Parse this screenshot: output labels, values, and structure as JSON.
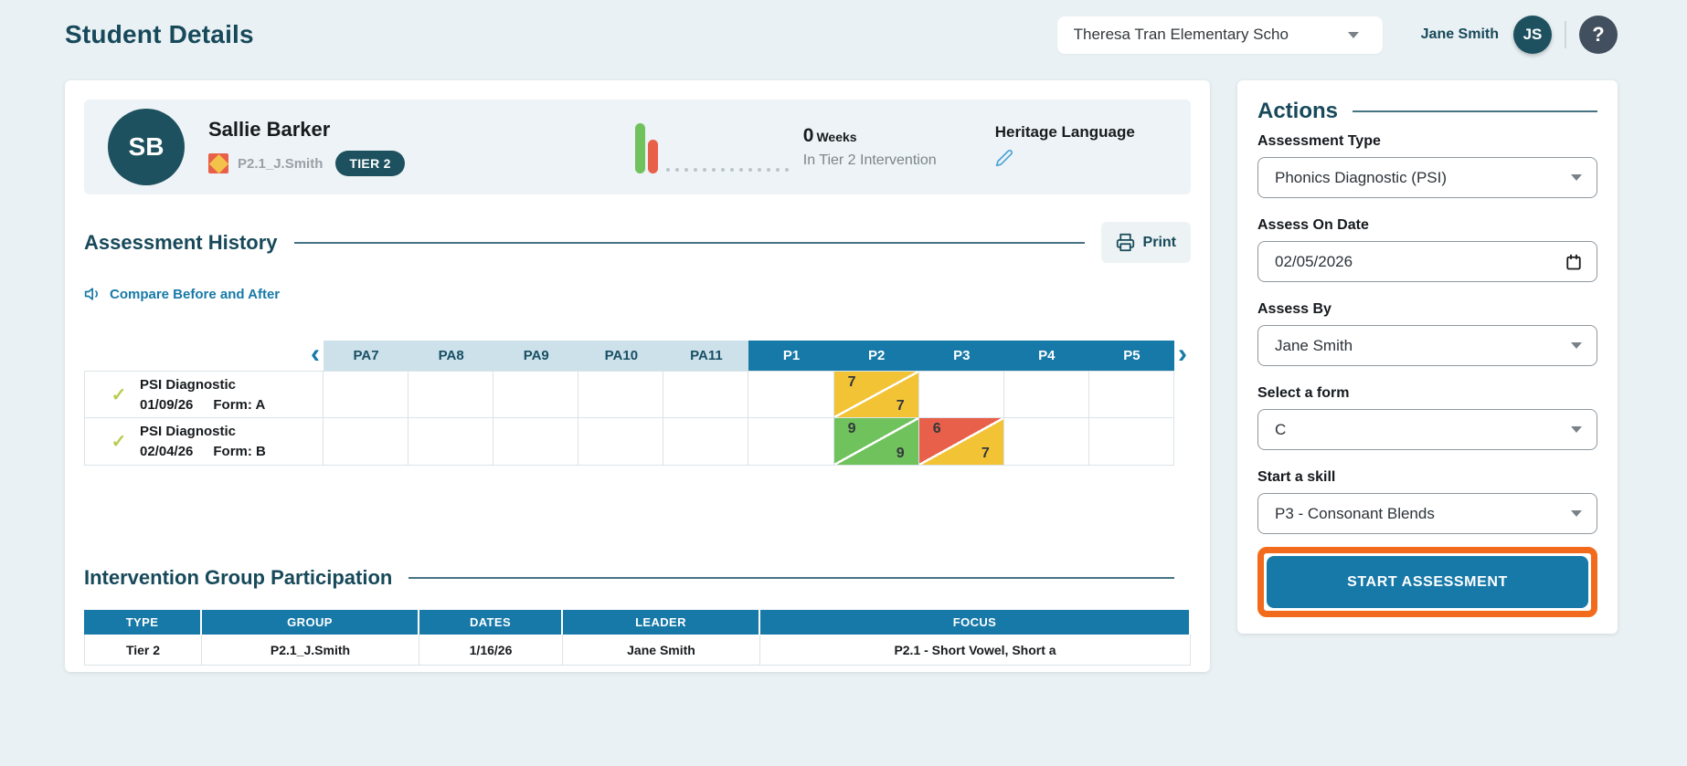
{
  "colors": {
    "accent_blue": "#1779a8",
    "dark_teal": "#17495a",
    "score_yellow": "#f2c335",
    "score_green": "#70c25c",
    "score_red": "#e8604a",
    "highlight_orange": "#f26a1b",
    "tier_badge_bg": "#1d515f"
  },
  "icons": {
    "chevron_left": "‹",
    "chevron_right": "›",
    "check": "✓",
    "help": "?"
  },
  "header": {
    "title": "Student Details",
    "school_selector_value": "Theresa Tran Elementary Scho",
    "user_name": "Jane Smith",
    "user_initials": "JS"
  },
  "student": {
    "initials": "SB",
    "name": "Sallie Barker",
    "group": "P2.1_J.Smith",
    "tier_badge": "TIER 2",
    "weeks_value": "0",
    "weeks_unit": "Weeks",
    "weeks_caption": "In Tier 2 Intervention",
    "language_label": "Heritage Language",
    "weeks_chart": {
      "type": "bar",
      "bars": [
        {
          "name": "bar-green",
          "color": "#70c25c",
          "height": 55
        },
        {
          "name": "bar-red",
          "color": "#e8604a",
          "height": 37
        }
      ],
      "dot_count": 14
    }
  },
  "assessment_history": {
    "title": "Assessment History",
    "print_label": "Print",
    "compare_label": "Compare Before and After",
    "columns": [
      "PA7",
      "PA8",
      "PA9",
      "PA10",
      "PA11",
      "P1",
      "P2",
      "P3",
      "P4",
      "P5"
    ],
    "rows": [
      {
        "name": "PSI Diagnostic",
        "date": "01/09/26",
        "form": "Form: A",
        "cells": {
          "P2": {
            "top": "7",
            "bottom": "7",
            "top_color": "yellow",
            "bottom_color": "yellow"
          }
        }
      },
      {
        "name": "PSI Diagnostic",
        "date": "02/04/26",
        "form": "Form: B",
        "cells": {
          "P2": {
            "top": "9",
            "bottom": "9",
            "top_color": "green",
            "bottom_color": "green"
          },
          "P3": {
            "top": "6",
            "bottom": "7",
            "top_color": "red",
            "bottom_color": "yellow"
          }
        }
      }
    ]
  },
  "intervention": {
    "title": "Intervention Group Participation",
    "columns": [
      "TYPE",
      "GROUP",
      "DATES",
      "LEADER",
      "FOCUS"
    ],
    "rows": [
      {
        "type": "Tier 2",
        "group": "P2.1_J.Smith",
        "dates": "1/16/26",
        "leader": "Jane Smith",
        "focus": "P2.1 - Short Vowel, Short a"
      }
    ]
  },
  "actions": {
    "title": "Actions",
    "fields": [
      {
        "label": "Assessment Type",
        "value": "Phonics Diagnostic (PSI)",
        "type": "select"
      },
      {
        "label": "Assess On Date",
        "value": "02/05/2026",
        "type": "date"
      },
      {
        "label": "Assess By",
        "value": "Jane Smith",
        "type": "select"
      },
      {
        "label": "Select a form",
        "value": "C",
        "type": "select"
      },
      {
        "label": "Start a skill",
        "value": "P3 - Consonant Blends",
        "type": "select"
      }
    ],
    "start_button_label": "START ASSESSMENT"
  }
}
